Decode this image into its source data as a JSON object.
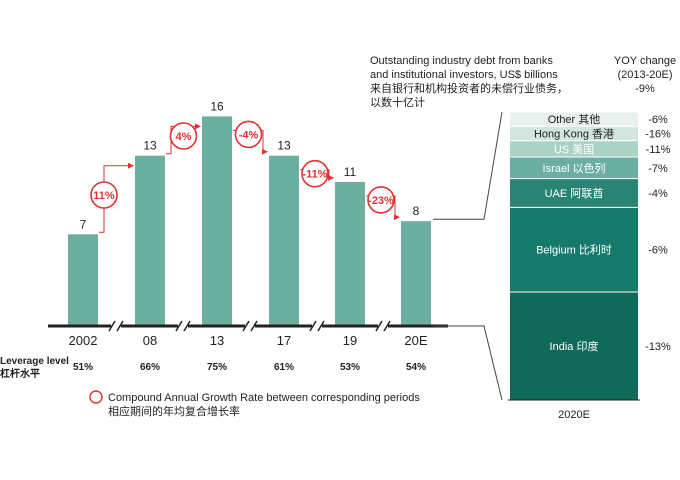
{
  "chart_data": {
    "type": "bar",
    "categories": [
      "2002",
      "08",
      "13",
      "17",
      "19",
      "20E"
    ],
    "values": [
      7,
      13,
      16,
      13,
      11,
      8
    ],
    "ylim": [
      0,
      18
    ],
    "leverage": {
      "label_en": "Leverage level",
      "label_zh": "杠杆水平",
      "values": [
        "51%",
        "66%",
        "75%",
        "61%",
        "53%",
        "54%"
      ]
    },
    "cagr": [
      "11%",
      "4%",
      "-4%",
      "-11%",
      "-23%"
    ],
    "legend": {
      "en": "Compound Annual Growth Rate between corresponding periods",
      "zh": "相应期间的年均复合增长率"
    },
    "colors": {
      "bar": "#6aafa0",
      "accent": "#e03232",
      "axis": "#222222"
    },
    "breakdown": {
      "title_lines": [
        "Outstanding industry debt from banks",
        "and institutional investors, US$ billions",
        "来自银行和机构投资者的未偿行业债务，",
        "以数十亿计"
      ],
      "yoy_title": [
        "YOY change",
        "(2013-20E)"
      ],
      "total_yoy": "-9%",
      "xlabel": "2020E",
      "segments": [
        {
          "label": "Other 其他",
          "yoy": "-6%",
          "value": 0.4,
          "color": "#e9f1ee"
        },
        {
          "label": "Hong Kong 香港",
          "yoy": "-16%",
          "value": 0.4,
          "color": "#d2e6df"
        },
        {
          "label": "US 美国",
          "yoy": "-11%",
          "value": 0.45,
          "color": "#a9d3c4"
        },
        {
          "label": "Israel 以色列",
          "yoy": "-7%",
          "value": 0.6,
          "color": "#6aafa0"
        },
        {
          "label": "UAE 阿联酋",
          "yoy": "-4%",
          "value": 0.8,
          "color": "#2a8473"
        },
        {
          "label": "Belgium 比利时",
          "yoy": "-6%",
          "value": 2.35,
          "color": "#147a6a"
        },
        {
          "label": "India 印度",
          "yoy": "-13%",
          "value": 3.0,
          "color": "#106a5a"
        }
      ]
    }
  }
}
